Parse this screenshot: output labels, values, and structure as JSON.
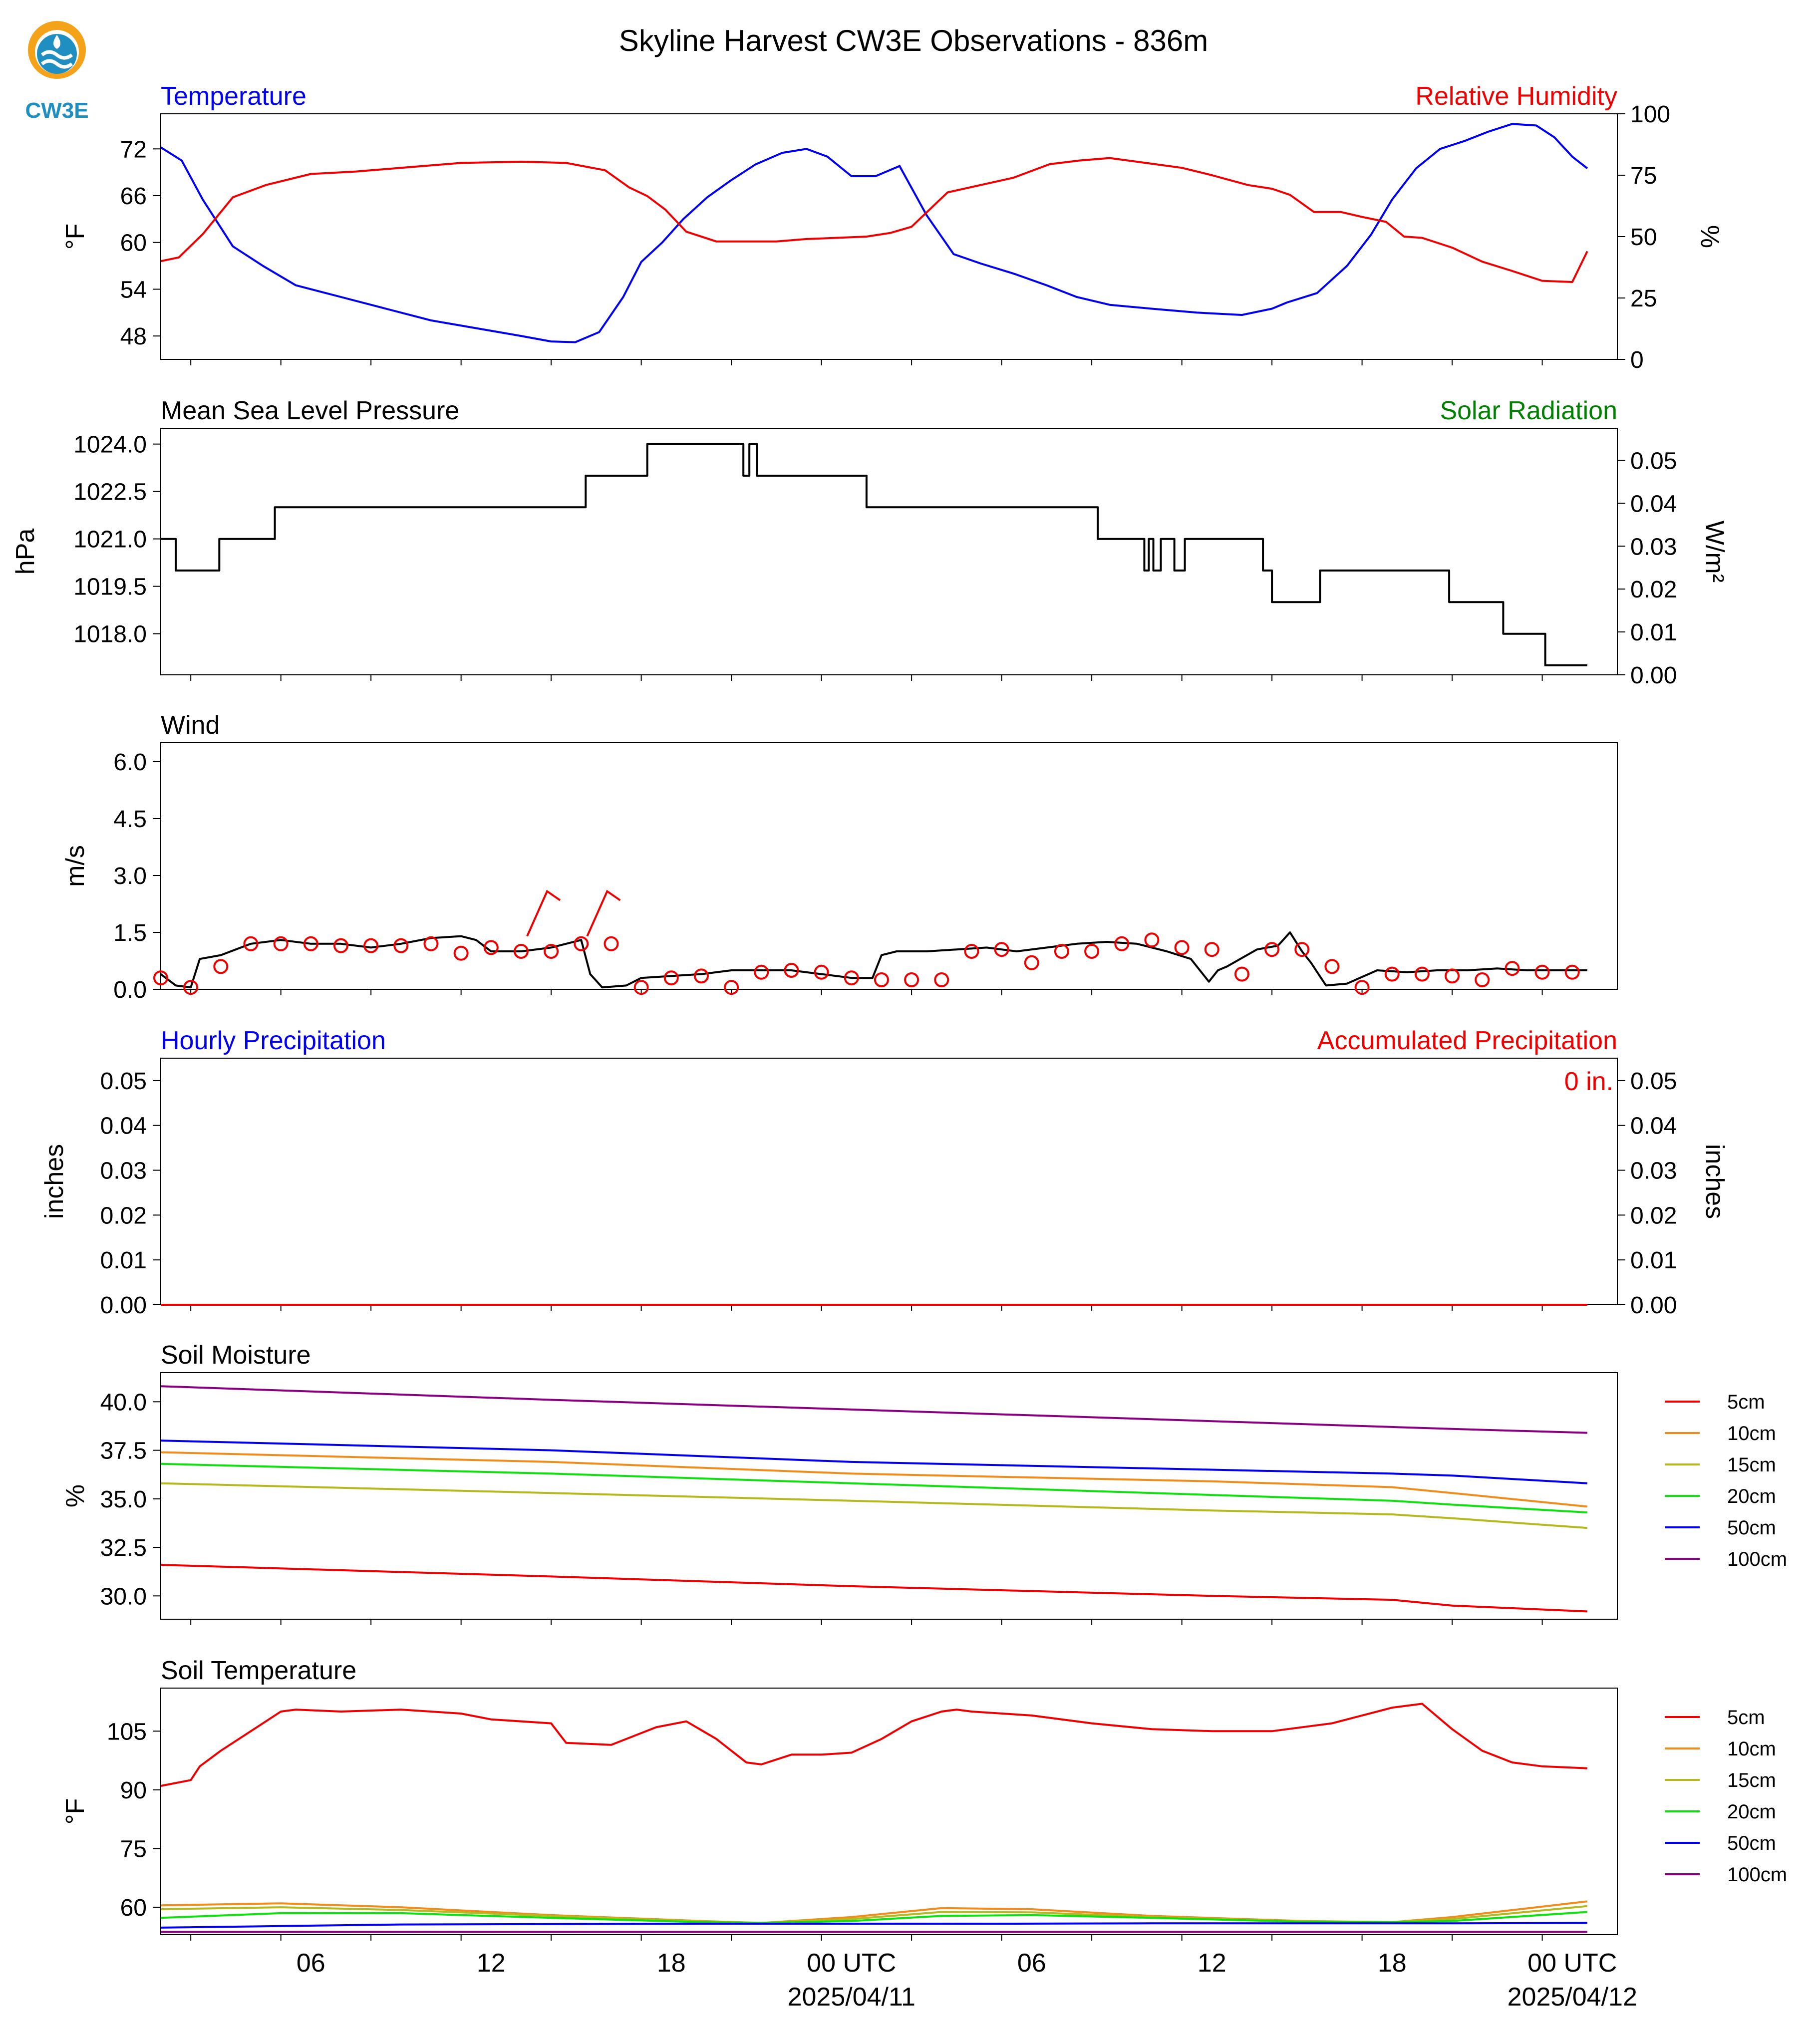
{
  "title": "Skyline Harvest CW3E Observations - 836m",
  "logo": {
    "text": "CW3E",
    "colors": {
      "ring": "#f5a21b",
      "body": "#1f8fc2",
      "text": "#1f8fc2"
    }
  },
  "x_axis": {
    "range_hours": [
      -23,
      24
    ],
    "ticks": [
      {
        "hour": -18,
        "label": "06",
        "date": ""
      },
      {
        "hour": -12,
        "label": "12",
        "date": ""
      },
      {
        "hour": -6,
        "label": "18",
        "date": ""
      },
      {
        "hour": 0,
        "label": "00 UTC",
        "date": "2025/04/11"
      },
      {
        "hour": 6,
        "label": "06",
        "date": ""
      },
      {
        "hour": 12,
        "label": "12",
        "date": ""
      },
      {
        "hour": 18,
        "label": "18",
        "date": ""
      },
      {
        "hour": 24,
        "label": "00 UTC",
        "date": "2025/04/12"
      }
    ]
  },
  "chart_data": [
    {
      "id": "temp_rh",
      "type": "line",
      "title_left": "Temperature",
      "title_right": "Relative Humidity",
      "ylabel": "°F",
      "ylabel_right": "%",
      "ylim": [
        45,
        76.5
      ],
      "yticks": [
        48,
        54,
        60,
        66,
        72
      ],
      "ylim_right": [
        0,
        100
      ],
      "yticks_right": [
        0,
        25,
        50,
        75,
        100
      ],
      "series": [
        {
          "key": "temperature",
          "color": "#0000ee",
          "axis": "left",
          "x": [
            -23,
            -22.3,
            -21.6,
            -20.6,
            -19.6,
            -18.5,
            -17,
            -15.5,
            -14,
            -12.5,
            -11,
            -10,
            -9.2,
            -8.4,
            -7.6,
            -7,
            -6.3,
            -5.6,
            -4.8,
            -4,
            -3.2,
            -2.3,
            -1.5,
            -0.8,
            0,
            0.8,
            1.6,
            2.5,
            3.4,
            4.3,
            5.4,
            6.5,
            7.5,
            8.6,
            10,
            11.5,
            13,
            14,
            14.5,
            15.5,
            16.5,
            17.3,
            18,
            18.8,
            19.6,
            20.4,
            21.2,
            22,
            22.8,
            23.4,
            24,
            24.5
          ],
          "y": [
            72.2,
            70.5,
            65.5,
            59.5,
            57,
            54.5,
            53,
            51.5,
            50,
            49,
            48,
            47.3,
            47.2,
            48.5,
            53,
            57.5,
            60,
            63,
            65.8,
            68,
            70,
            71.5,
            72,
            71,
            68.5,
            68.5,
            69.8,
            63.5,
            58.5,
            57.3,
            56,
            54.5,
            53,
            52,
            51.5,
            51,
            50.7,
            51.5,
            52.3,
            53.5,
            57,
            61,
            65.5,
            69.5,
            72,
            73,
            74.2,
            75.2,
            75,
            73.5,
            71,
            69.5
          ]
        },
        {
          "key": "relative_humidity",
          "color": "#ee0000",
          "axis": "right",
          "x": [
            -23,
            -22.4,
            -21.6,
            -20.6,
            -19.5,
            -18,
            -16.5,
            -15,
            -13,
            -11,
            -9.5,
            -8.2,
            -7.4,
            -6.8,
            -6.2,
            -5.5,
            -4.5,
            -3.5,
            -2.5,
            -1.5,
            -0.5,
            0.5,
            1.3,
            2,
            3.2,
            4.3,
            5.4,
            6.6,
            7.6,
            8.6,
            9.8,
            11,
            12,
            13.2,
            14,
            14.6,
            15.4,
            16.3,
            17,
            17.8,
            18.4,
            19,
            20,
            21,
            22,
            23,
            24,
            24.5
          ],
          "y": [
            40,
            41.5,
            51,
            66,
            71,
            75.5,
            76.5,
            78,
            80,
            80.5,
            80,
            77,
            70,
            66.5,
            61,
            52,
            48,
            48,
            48,
            49,
            49.5,
            50,
            51.5,
            54,
            68,
            71,
            74,
            79.5,
            81,
            82,
            80,
            78,
            75,
            71,
            69.5,
            67,
            60,
            60,
            58,
            56,
            50,
            49.5,
            45.5,
            39.8,
            36,
            32,
            31.5,
            44
          ]
        }
      ]
    },
    {
      "id": "pressure",
      "type": "line",
      "title_left": "Mean Sea Level Pressure",
      "title_right": "Solar Radiation",
      "ylabel": "hPa",
      "ylabel_right": "W/m²",
      "ylim": [
        1016.7,
        1024.5
      ],
      "yticks": [
        1018.0,
        1019.5,
        1021.0,
        1022.5,
        1024.0
      ],
      "ylim_right": [
        0,
        0.0575
      ],
      "yticks_right": [
        0,
        0.01,
        0.02,
        0.03,
        0.04,
        0.05
      ],
      "series": [
        {
          "key": "msl_pressure",
          "color": "#000000",
          "axis": "left",
          "x": [
            -23,
            -22.5,
            -22.5,
            -21.05,
            -21.05,
            -19.2,
            -19.2,
            -8.85,
            -8.85,
            -6.8,
            -6.8,
            -3.6,
            -3.6,
            -3.4,
            -3.4,
            -3.15,
            -3.15,
            -2.95,
            -2.95,
            0.5,
            0.5,
            8.2,
            8.2,
            9.75,
            9.75,
            9.9,
            9.9,
            10.05,
            10.05,
            10.3,
            10.3,
            10.45,
            10.45,
            10.75,
            10.75,
            11.1,
            11.1,
            11.5,
            11.5,
            13.7,
            13.7,
            14,
            14,
            15.6,
            15.6,
            19.9,
            19.9,
            21.7,
            21.7,
            23.1,
            23.1,
            24.5
          ],
          "y": [
            1021,
            1021,
            1020,
            1020,
            1021,
            1021,
            1022,
            1022,
            1023,
            1023,
            1024,
            1024,
            1023,
            1023,
            1024,
            1024,
            1023,
            1023,
            1023,
            1023,
            1022,
            1022,
            1021,
            1021,
            1020,
            1020,
            1021,
            1021,
            1020,
            1020,
            1021,
            1021,
            1021,
            1021,
            1020,
            1020,
            1021,
            1021,
            1021,
            1021,
            1020,
            1020,
            1019,
            1019,
            1020,
            1020,
            1019,
            1019,
            1018,
            1018,
            1017,
            1017
          ]
        }
      ]
    },
    {
      "id": "wind",
      "type": "line",
      "title_left": "Wind",
      "ylabel": "m/s",
      "ylim": [
        0,
        6.5
      ],
      "yticks": [
        0.0,
        1.5,
        3.0,
        4.5,
        6.0
      ],
      "series": [
        {
          "key": "wind_speed",
          "color": "#000000",
          "x": [
            -23,
            -22.5,
            -22,
            -21.7,
            -21,
            -20,
            -19,
            -18,
            -17,
            -16,
            -15,
            -14,
            -13,
            -12.5,
            -12,
            -11,
            -10,
            -9,
            -8.7,
            -8.3,
            -7.5,
            -7,
            -6,
            -5,
            -4,
            -3,
            -2,
            -1,
            0,
            0.7,
            1,
            1.5,
            2.5,
            3.5,
            4.5,
            5.5,
            6.5,
            7.5,
            8.5,
            9.5,
            10.5,
            11.3,
            11.9,
            12.2,
            12.5,
            13.5,
            14.2,
            14.6,
            15,
            15.3,
            15.8,
            16.5,
            17.5,
            18.5,
            19.5,
            20.5,
            21.5,
            22.5,
            23.5,
            24.5
          ],
          "y": [
            0.4,
            0.1,
            0.05,
            0.8,
            0.9,
            1.2,
            1.3,
            1.2,
            1.2,
            1.1,
            1.2,
            1.35,
            1.4,
            1.3,
            1.0,
            1.0,
            1.1,
            1.3,
            0.4,
            0.05,
            0.1,
            0.3,
            0.35,
            0.4,
            0.5,
            0.5,
            0.5,
            0.4,
            0.3,
            0.3,
            0.9,
            1.0,
            1.0,
            1.05,
            1.1,
            1.0,
            1.1,
            1.2,
            1.25,
            1.2,
            1.0,
            0.8,
            0.2,
            0.5,
            0.6,
            1.05,
            1.15,
            1.5,
            1.0,
            0.7,
            0.1,
            0.15,
            0.5,
            0.45,
            0.5,
            0.5,
            0.55,
            0.5,
            0.5,
            0.5
          ]
        }
      ],
      "markers": {
        "key": "wind_obs",
        "color": "#ee0000",
        "x": [
          -23,
          -22,
          -21,
          -20,
          -19,
          -18,
          -17,
          -16,
          -15,
          -14,
          -13,
          -12,
          -11,
          -10,
          -9,
          -8,
          -7,
          -6,
          -5,
          -4,
          -3,
          -2,
          -1,
          0,
          1,
          2,
          3,
          4,
          5,
          6,
          7,
          8,
          9,
          10,
          11,
          12,
          13,
          14,
          15,
          16,
          17,
          18,
          19,
          20,
          21,
          22,
          23,
          24
        ],
        "y": [
          0.3,
          0.05,
          0.6,
          1.2,
          1.2,
          1.2,
          1.15,
          1.15,
          1.15,
          1.2,
          0.95,
          1.1,
          1.0,
          1.0,
          1.2,
          1.2,
          0.05,
          0.3,
          0.35,
          0.05,
          0.45,
          0.5,
          0.45,
          0.3,
          0.25,
          0.25,
          0.25,
          1.0,
          1.05,
          0.7,
          1.0,
          1.0,
          1.2,
          1.3,
          1.1,
          1.05,
          0.4,
          1.05,
          1.05,
          0.6,
          0.05,
          0.4,
          0.4,
          0.35,
          0.25,
          0.55,
          0.45,
          0.45
        ]
      },
      "barbs": [
        {
          "x": -10.8,
          "y": 1.4,
          "color": "#ee0000"
        },
        {
          "x": -8.8,
          "y": 1.4,
          "color": "#ee0000"
        }
      ]
    },
    {
      "id": "precip",
      "type": "line",
      "title_left": "Hourly Precipitation",
      "title_right": "Accumulated Precipitation",
      "annotation": "0 in.",
      "ylabel": "inches",
      "ylabel_right": "inches",
      "ylim": [
        0,
        0.055
      ],
      "yticks": [
        0.0,
        0.01,
        0.02,
        0.03,
        0.04,
        0.05
      ],
      "ylim_right": [
        0,
        0.055
      ],
      "yticks_right": [
        0.0,
        0.01,
        0.02,
        0.03,
        0.04,
        0.05
      ],
      "series": [
        {
          "key": "accumulated_precip",
          "color": "#ee0000",
          "x": [
            -23,
            24.5
          ],
          "y": [
            0,
            0
          ]
        }
      ]
    },
    {
      "id": "soil_moisture",
      "type": "line",
      "title_left": "Soil Moisture",
      "ylabel": "%",
      "ylim": [
        28.8,
        41.5
      ],
      "yticks": [
        30.0,
        32.5,
        35.0,
        37.5,
        40.0
      ],
      "legend": "right",
      "series": [
        {
          "name": "5cm",
          "color": "#ee0000",
          "x": [
            -23,
            -10,
            0,
            12,
            18,
            20,
            24.5
          ],
          "y": [
            31.6,
            31.0,
            30.5,
            30.0,
            29.8,
            29.5,
            29.2
          ]
        },
        {
          "name": "10cm",
          "color": "#f08c1c",
          "x": [
            -23,
            -10,
            0,
            12,
            18,
            20,
            24.5
          ],
          "y": [
            37.4,
            36.9,
            36.3,
            35.9,
            35.6,
            35.3,
            34.6
          ]
        },
        {
          "name": "15cm",
          "color": "#b5b81e",
          "x": [
            -23,
            -10,
            0,
            12,
            18,
            20,
            24.5
          ],
          "y": [
            35.8,
            35.3,
            34.9,
            34.4,
            34.2,
            34.0,
            33.5
          ]
        },
        {
          "name": "20cm",
          "color": "#10e010",
          "x": [
            -23,
            -10,
            0,
            12,
            18,
            20,
            24.5
          ],
          "y": [
            36.8,
            36.3,
            35.8,
            35.2,
            34.9,
            34.7,
            34.3
          ]
        },
        {
          "name": "50cm",
          "color": "#0000ee",
          "x": [
            -23,
            -10,
            0,
            12,
            18,
            20,
            24.5
          ],
          "y": [
            38.0,
            37.5,
            36.9,
            36.5,
            36.3,
            36.2,
            35.8
          ]
        },
        {
          "name": "100cm",
          "color": "#880080",
          "x": [
            -23,
            -10,
            0,
            12,
            18,
            20,
            24.5
          ],
          "y": [
            40.8,
            40.1,
            39.6,
            39.0,
            38.7,
            38.6,
            38.4
          ]
        }
      ]
    },
    {
      "id": "soil_temperature",
      "type": "line",
      "title_left": "Soil Temperature",
      "ylabel": "°F",
      "ylim": [
        53,
        116
      ],
      "yticks": [
        60,
        75,
        90,
        105
      ],
      "legend": "right",
      "series": [
        {
          "name": "5cm",
          "color": "#ee0000",
          "x": [
            -23,
            -22,
            -21.7,
            -21,
            -20,
            -19,
            -18.5,
            -17,
            -15,
            -13,
            -12,
            -10,
            -9.5,
            -8,
            -6.5,
            -5.5,
            -4.5,
            -3.5,
            -3,
            -2,
            -1,
            0,
            1,
            2,
            3,
            3.5,
            4,
            6,
            8,
            10,
            12,
            14,
            16,
            18,
            19,
            20,
            21,
            22,
            23,
            24.5
          ],
          "y": [
            91,
            92.5,
            96,
            100,
            105,
            110,
            110.5,
            110,
            110.5,
            109.5,
            108,
            107,
            102,
            101.5,
            106,
            107.5,
            103,
            97,
            96.5,
            99,
            99,
            99.5,
            103,
            107.5,
            110,
            110.5,
            110,
            109,
            107,
            105.5,
            105,
            105,
            107,
            111,
            112,
            105.5,
            100,
            97,
            96,
            95.5
          ]
        },
        {
          "name": "10cm",
          "color": "#f08c1c",
          "x": [
            -23,
            -19,
            -15,
            -10,
            -5,
            -3,
            0,
            3,
            6,
            10,
            15,
            18,
            20,
            24.5
          ],
          "y": [
            60.5,
            61,
            60,
            58,
            56.5,
            56,
            57.5,
            59.8,
            59.5,
            57.8,
            56.5,
            56.2,
            57.5,
            61.5
          ]
        },
        {
          "name": "15cm",
          "color": "#b5b81e",
          "x": [
            -23,
            -19,
            -15,
            -10,
            -5,
            -3,
            0,
            3,
            6,
            10,
            15,
            18,
            20,
            24.5
          ],
          "y": [
            59.5,
            60,
            59.3,
            57.8,
            56.4,
            56,
            57,
            58.8,
            58.7,
            57.5,
            56.4,
            56.2,
            57,
            60.3
          ]
        },
        {
          "name": "20cm",
          "color": "#10e010",
          "x": [
            -23,
            -19,
            -15,
            -10,
            -5,
            -3,
            0,
            3,
            6,
            10,
            15,
            18,
            20,
            24.5
          ],
          "y": [
            57.3,
            58.5,
            58.5,
            57.3,
            56.2,
            56,
            56.5,
            57.8,
            58,
            57.3,
            56.3,
            56.2,
            56.5,
            58.8
          ]
        },
        {
          "name": "50cm",
          "color": "#0000ee",
          "x": [
            -23,
            -15,
            -5,
            0,
            5,
            10,
            15,
            20,
            24.5
          ],
          "y": [
            54.8,
            55.6,
            55.8,
            55.8,
            55.8,
            55.9,
            55.9,
            55.9,
            56
          ]
        },
        {
          "name": "100cm",
          "color": "#880080",
          "x": [
            -23,
            24.5
          ],
          "y": [
            53.7,
            53.7
          ]
        }
      ]
    }
  ]
}
